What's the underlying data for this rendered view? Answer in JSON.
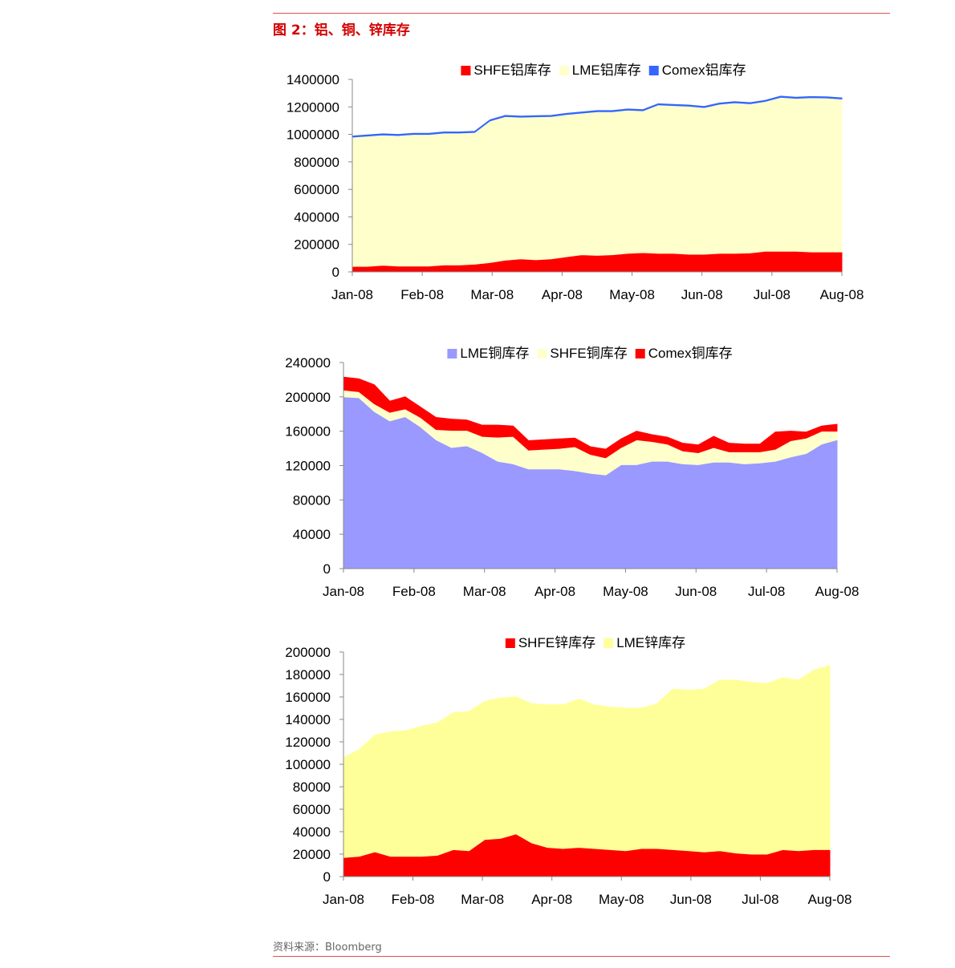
{
  "header": {
    "title": "图 2：铝、铜、锌库存"
  },
  "footer": {
    "source": "资料来源：Bloomberg"
  },
  "colors": {
    "rule": "#d9534f",
    "title": "#d40000"
  },
  "chart_data": [
    {
      "type": "area",
      "x_labels": [
        "Jan-08",
        "Feb-08",
        "Mar-08",
        "Apr-08",
        "May-08",
        "Jun-08",
        "Jul-08",
        "Aug-08"
      ],
      "y_ticks": [
        "1400000",
        "1200000",
        "1000000",
        "800000",
        "600000",
        "400000",
        "200000",
        "0"
      ],
      "ylim": [
        0,
        1400000
      ],
      "stacked": true,
      "legend_position": "top",
      "series": [
        {
          "name": "SHFE铝库存",
          "color": "#ff0000",
          "values": [
            40000,
            40000,
            48000,
            42000,
            42000,
            42000,
            50000,
            50000,
            56000,
            68000,
            85000,
            95000,
            88000,
            95000,
            110000,
            125000,
            120000,
            125000,
            135000,
            140000,
            135000,
            135000,
            128000,
            128000,
            135000,
            135000,
            138000,
            150000,
            150000,
            150000,
            145000,
            145000,
            145000
          ]
        },
        {
          "name": "LME铝库存",
          "color": "#ffffcc",
          "values": [
            940000,
            948000,
            948000,
            950000,
            958000,
            958000,
            960000,
            960000,
            958000,
            1030000,
            1045000,
            1030000,
            1040000,
            1035000,
            1035000,
            1030000,
            1045000,
            1040000,
            1042000,
            1032000,
            1080000,
            1075000,
            1077000,
            1067000,
            1085000,
            1095000,
            1085000,
            1090000,
            1120000,
            1112000,
            1122000,
            1120000,
            1112000
          ]
        },
        {
          "name": "Comex铝库存",
          "color": "#3366ff",
          "values": [
            8000,
            8000,
            8000,
            8000,
            8000,
            8000,
            8000,
            8000,
            8000,
            8000,
            8000,
            8000,
            8000,
            8000,
            8000,
            8000,
            8000,
            8000,
            8000,
            8000,
            8000,
            8000,
            8000,
            8000,
            8000,
            8000,
            8000,
            8000,
            8000,
            8000,
            8000,
            8000,
            8000
          ]
        }
      ]
    },
    {
      "type": "area",
      "x_labels": [
        "Jan-08",
        "Feb-08",
        "Mar-08",
        "Apr-08",
        "May-08",
        "Jun-08",
        "Jul-08",
        "Aug-08"
      ],
      "y_ticks": [
        "240000",
        "200000",
        "160000",
        "120000",
        "80000",
        "40000",
        "0"
      ],
      "ylim": [
        0,
        240000
      ],
      "stacked": true,
      "legend_position": "top",
      "series": [
        {
          "name": "LME铜库存",
          "color": "#9999ff",
          "values": [
            200000,
            199000,
            183000,
            172000,
            177000,
            165000,
            150000,
            141000,
            143000,
            135000,
            125000,
            122000,
            116000,
            116000,
            116000,
            114000,
            111000,
            109000,
            121000,
            121000,
            125000,
            125000,
            122000,
            121000,
            124000,
            124000,
            122000,
            123000,
            125000,
            130000,
            134000,
            145000,
            150000
          ]
        },
        {
          "name": "SHFE铜库存",
          "color": "#ffffcc",
          "values": [
            8000,
            7000,
            9000,
            10000,
            9000,
            11000,
            12000,
            20000,
            18000,
            19000,
            28000,
            32000,
            22000,
            23000,
            24000,
            28000,
            22000,
            20000,
            20000,
            29000,
            23000,
            20000,
            15000,
            14000,
            17000,
            12000,
            14000,
            13000,
            14000,
            19000,
            18000,
            15000,
            10000
          ]
        },
        {
          "name": "Comex铜库存",
          "color": "#ff0000",
          "values": [
            15000,
            15000,
            22000,
            13000,
            14000,
            12000,
            14000,
            13000,
            12000,
            13000,
            14000,
            12000,
            11000,
            11000,
            11000,
            10000,
            9000,
            10000,
            10000,
            10000,
            8000,
            8000,
            9000,
            9000,
            13000,
            10000,
            9000,
            9000,
            20000,
            11000,
            7000,
            6000,
            8000
          ]
        }
      ]
    },
    {
      "type": "area",
      "x_labels": [
        "Jan-08",
        "Feb-08",
        "Mar-08",
        "Apr-08",
        "May-08",
        "Jun-08",
        "Jul-08",
        "Aug-08"
      ],
      "y_ticks": [
        "200000",
        "180000",
        "160000",
        "140000",
        "120000",
        "100000",
        "80000",
        "60000",
        "40000",
        "20000",
        "0"
      ],
      "ylim": [
        0,
        200000
      ],
      "stacked": true,
      "legend_position": "top",
      "series": [
        {
          "name": "SHFE锌库存",
          "color": "#ff0000",
          "values": [
            17000,
            18000,
            22000,
            18000,
            18000,
            18000,
            19000,
            24000,
            23000,
            33000,
            34000,
            38000,
            30000,
            26000,
            25000,
            26000,
            25000,
            24000,
            23000,
            25000,
            25000,
            24000,
            23000,
            22000,
            23000,
            21000,
            20000,
            20000,
            24000,
            23000,
            24000,
            24000
          ]
        },
        {
          "name": "LME锌库存",
          "color": "#ffff99",
          "values": [
            89000,
            95000,
            104000,
            111000,
            112000,
            116000,
            118000,
            122000,
            124000,
            123000,
            125000,
            122000,
            124000,
            127000,
            128000,
            132000,
            128000,
            127000,
            127000,
            125000,
            129000,
            143000,
            143000,
            145000,
            152000,
            154000,
            153000,
            152000,
            153000,
            152000,
            160000,
            164000
          ]
        }
      ]
    }
  ]
}
